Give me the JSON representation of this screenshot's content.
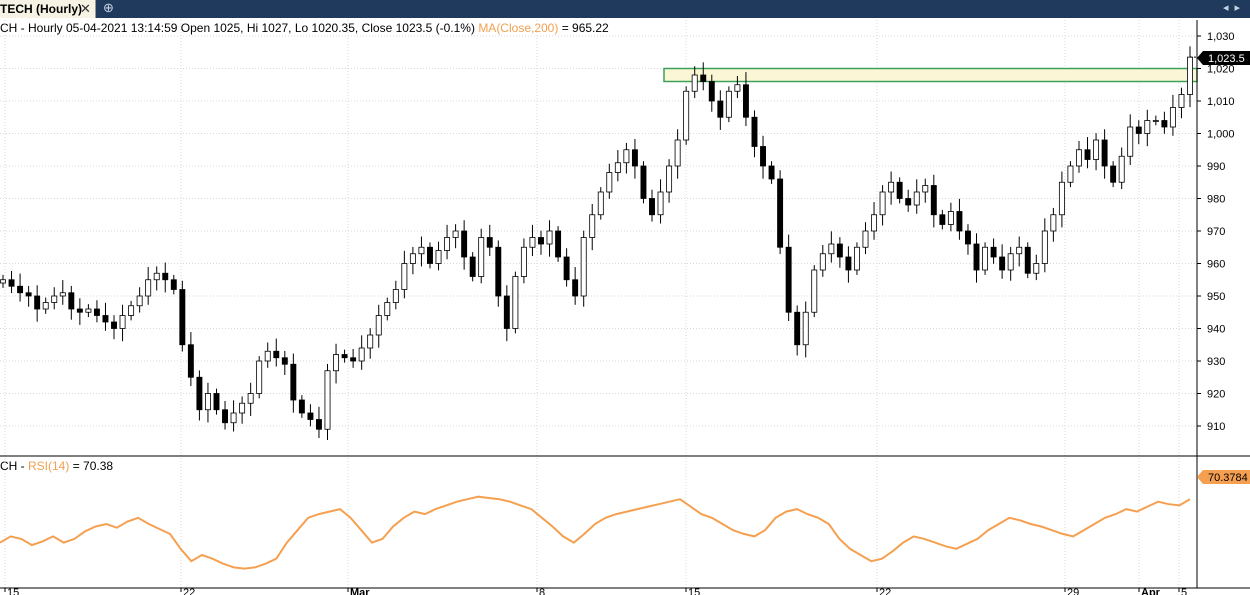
{
  "window": {
    "tab_label": "TECH (Hourly)",
    "close_icon": "close-icon",
    "add_icon": "add-tab-icon",
    "nav_icons": [
      "arrow-left-icon",
      "arrow-right-icon"
    ]
  },
  "header": {
    "prefix": "CH - Hourly 05-04-2021 13:14:59 Open 1025, Hi 1027, Lo 1020.35, Close 1023.5 (-0.1%)",
    "ma_label": "MA(Close,200)",
    "ma_value": "= 965.22"
  },
  "rsi_header": {
    "prefix": "CH - ",
    "name": "RSI(14)",
    "value": "= 70.38"
  },
  "badges": {
    "price": "1,023.5",
    "rsi": "70.3784"
  },
  "colors": {
    "up_candle": "#ffffff",
    "down_candle": "#000000",
    "rsi_line": "#f5a050",
    "zone_fill": "#fbf7d6",
    "zone_border": "#3ca05a",
    "grid": "#d0d0d0"
  },
  "chart_data": [
    {
      "type": "candlestick",
      "interval": "hourly",
      "y_ticks": [
        "910",
        "920",
        "930",
        "940",
        "950",
        "960",
        "970",
        "980",
        "990",
        "1,000",
        "1,010",
        "1,020",
        "1,030"
      ],
      "ylim": [
        903,
        1033
      ],
      "x_labels": [
        "15",
        "22",
        "Mar",
        "8",
        "15",
        "22",
        "29",
        "Apr",
        "5"
      ],
      "last_close": 1023.5,
      "zone": {
        "low": 1016,
        "high": 1020
      },
      "closes": [
        955,
        953,
        951,
        950,
        946,
        948,
        950,
        951,
        946,
        945,
        946,
        944,
        942,
        940,
        944,
        947,
        950,
        955,
        957,
        955,
        952,
        935,
        925,
        915,
        920,
        915,
        911,
        914,
        917,
        920,
        930,
        933,
        931,
        929,
        918,
        914,
        912,
        909,
        927,
        932,
        931,
        930,
        934,
        938,
        944,
        948,
        952,
        960,
        963,
        965,
        960,
        964,
        968,
        970,
        962,
        956,
        968,
        965,
        950,
        940,
        956,
        965,
        968,
        966,
        970,
        962,
        955,
        950,
        968,
        975,
        982,
        988,
        991,
        995,
        990,
        980,
        975,
        982,
        990,
        998,
        1013,
        1018,
        1016,
        1010,
        1005,
        1013,
        1015,
        1005,
        996,
        990,
        986,
        965,
        945,
        935,
        945,
        958,
        963,
        966,
        962,
        958,
        965,
        970,
        975,
        982,
        985,
        980,
        978,
        982,
        984,
        975,
        972,
        976,
        970,
        966,
        958,
        965,
        962,
        958,
        963,
        965,
        957,
        960,
        970,
        975,
        985,
        990,
        995,
        992,
        998,
        990,
        985,
        993,
        1002,
        1000,
        1004,
        1004,
        1002,
        1008,
        1012,
        1023.5
      ]
    },
    {
      "type": "line",
      "name": "RSI(14)",
      "x_labels": [
        "15",
        "22",
        "Mar",
        "8",
        "15",
        "22",
        "29",
        "Apr",
        "5"
      ],
      "ylim": [
        0,
        100
      ],
      "last_value": 70.3784,
      "values": [
        35,
        40,
        38,
        33,
        36,
        40,
        35,
        38,
        44,
        48,
        50,
        47,
        52,
        55,
        50,
        46,
        42,
        30,
        20,
        25,
        22,
        18,
        15,
        14,
        15,
        18,
        22,
        35,
        45,
        55,
        58,
        60,
        62,
        55,
        45,
        35,
        38,
        48,
        55,
        60,
        58,
        62,
        65,
        68,
        70,
        72,
        71,
        70,
        68,
        65,
        62,
        55,
        48,
        40,
        35,
        42,
        50,
        55,
        58,
        60,
        62,
        64,
        66,
        68,
        70,
        64,
        58,
        55,
        50,
        45,
        42,
        40,
        45,
        55,
        60,
        62,
        58,
        55,
        50,
        38,
        30,
        25,
        20,
        22,
        28,
        35,
        40,
        38,
        35,
        32,
        30,
        34,
        38,
        45,
        50,
        55,
        53,
        50,
        48,
        45,
        42,
        40,
        45,
        50,
        55,
        58,
        62,
        60,
        64,
        68,
        66,
        65,
        70
      ]
    }
  ]
}
